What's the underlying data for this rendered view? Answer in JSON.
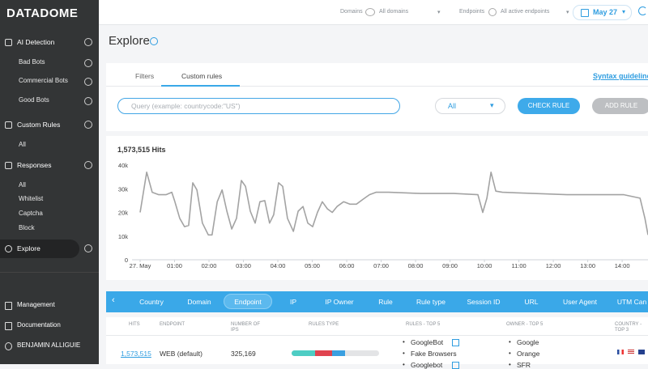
{
  "brand": "DATADOME",
  "sidebar": {
    "menu": [
      {
        "label": "AI Detection",
        "items": [
          "Bad Bots",
          "Commercial Bots",
          "Good Bots"
        ]
      },
      {
        "label": "Custom Rules",
        "items": [
          "All"
        ]
      },
      {
        "label": "Responses",
        "items": [
          "All",
          "Whitelist",
          "Captcha",
          "Block"
        ]
      },
      {
        "label": "Explore",
        "items": []
      }
    ],
    "active": 3,
    "footer": [
      "Management",
      "Documentation",
      "BENJAMIN ALLIGUIE"
    ]
  },
  "topbar": {
    "domains_label": "Domains",
    "domains_value": "All domains",
    "endpoints_label": "Endpoints",
    "endpoints_value": "All active endpoints",
    "date": "May 27"
  },
  "page_title": "Explore",
  "tabs": [
    "Filters",
    "Custom rules"
  ],
  "active_tab": 1,
  "syntax_link": "Syntax guideline",
  "query_placeholder": "Query (example: countrycode:\"US\")",
  "select_value": "All",
  "buttons": [
    "CHECK RULE",
    "ADD RULE"
  ],
  "chart_data": {
    "type": "line",
    "title": "1,573,515 Hits",
    "color": "#a3a3a3",
    "x": [
      0,
      0.19,
      0.35,
      0.54,
      0.75,
      0.92,
      1.01,
      1.15,
      1.29,
      1.41,
      1.53,
      1.65,
      1.81,
      1.98,
      2.09,
      2.24,
      2.38,
      2.52,
      2.66,
      2.8,
      2.94,
      3.06,
      3.2,
      3.34,
      3.48,
      3.62,
      3.76,
      3.88,
      4.02,
      4.14,
      4.28,
      4.45,
      4.59,
      4.73,
      4.87,
      5.01,
      5.15,
      5.29,
      5.44,
      5.58,
      5.72,
      5.91,
      6.09,
      6.28,
      6.47,
      6.66,
      6.85,
      7.22,
      8.16,
      9.11,
      9.81,
      9.95,
      10.07,
      10.19,
      10.33,
      10.52,
      12.4,
      14.05,
      14.52,
      14.66,
      14.75
    ],
    "values": [
      20000,
      37000,
      28500,
      27500,
      27500,
      28500,
      24500,
      17500,
      14000,
      14500,
      32500,
      29500,
      15500,
      10500,
      10500,
      24500,
      29500,
      20500,
      13000,
      17500,
      33500,
      31000,
      20500,
      15500,
      24500,
      25000,
      15500,
      19000,
      32500,
      31000,
      17500,
      12000,
      20500,
      22500,
      15500,
      14000,
      20000,
      24500,
      21500,
      20000,
      22500,
      24500,
      23500,
      23500,
      25500,
      27500,
      28500,
      28500,
      28000,
      28000,
      27500,
      20000,
      26000,
      37000,
      29000,
      28500,
      27500,
      27500,
      26000,
      17500,
      10500
    ],
    "xlim": [
      0,
      14.75
    ],
    "xticks": [
      {
        "value": 0,
        "label": "27. May"
      },
      {
        "value": 1,
        "label": "01:00"
      },
      {
        "value": 2,
        "label": "02:00"
      },
      {
        "value": 3,
        "label": "03:00"
      },
      {
        "value": 4,
        "label": "04:00"
      },
      {
        "value": 5,
        "label": "05:00"
      },
      {
        "value": 6,
        "label": "06:00"
      },
      {
        "value": 7,
        "label": "07:00"
      },
      {
        "value": 8,
        "label": "08:00"
      },
      {
        "value": 9,
        "label": "09:00"
      },
      {
        "value": 10,
        "label": "10:00"
      },
      {
        "value": 11,
        "label": "11:00"
      },
      {
        "value": 12,
        "label": "12:00"
      },
      {
        "value": 13,
        "label": "13:00"
      },
      {
        "value": 14,
        "label": "14:00"
      }
    ],
    "ylim": [
      0,
      40000
    ],
    "yticks": [
      0,
      {
        "value": 10000,
        "label": "10k"
      },
      {
        "value": 20000,
        "label": "20k"
      },
      {
        "value": 30000,
        "label": "30k"
      },
      {
        "value": 40000,
        "label": "40k"
      }
    ],
    "grid": false
  },
  "dimensions": [
    "Country",
    "Domain",
    "Endpoint",
    "IP",
    "IP Owner",
    "Rule",
    "Rule type",
    "Session ID",
    "URL",
    "User Agent",
    "UTM Can"
  ],
  "active_dimension": 2,
  "table": {
    "headers": [
      "HITS",
      "ENDPOINT",
      "NUMBER OF IPS",
      "RULES TYPE",
      "RULES - TOP 5",
      "OWNER - TOP 5",
      "COUNTRY - TOP 3"
    ],
    "rows": [
      {
        "hits": "1,573,515",
        "endpoint": "WEB (default)",
        "ips": "325,169",
        "rules": [
          "GoogleBot",
          "Fake Browsers",
          "Googlebot"
        ],
        "owners": [
          "Google",
          "Orange",
          "SFR"
        ]
      }
    ]
  }
}
